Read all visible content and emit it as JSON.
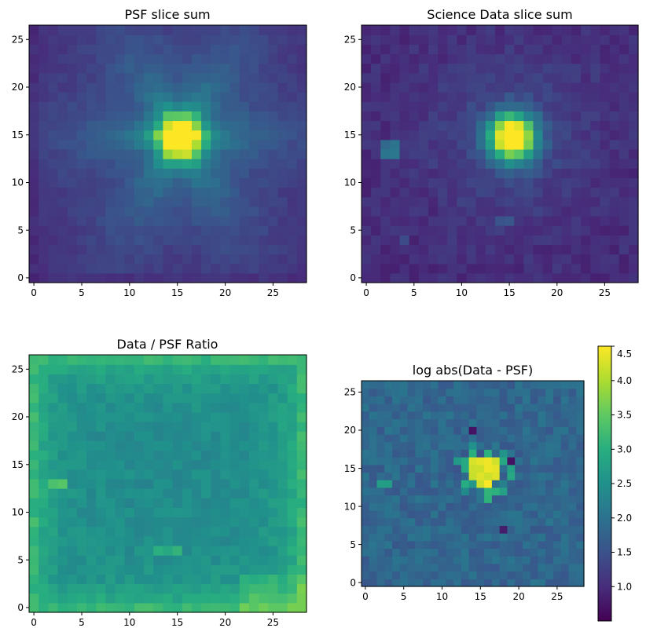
{
  "chart_data": [
    {
      "type": "heatmap",
      "title": "PSF slice sum",
      "colormap": "viridis",
      "grid": false,
      "nx": 29,
      "ny": 27,
      "xlim": [
        -0.5,
        28.5
      ],
      "ylim": [
        -0.5,
        26.5
      ],
      "xticks": [
        0,
        5,
        10,
        15,
        20,
        25
      ],
      "yticks": [
        0,
        5,
        10,
        15,
        20,
        25
      ],
      "xtick_labels": [
        "0",
        "5",
        "10",
        "15",
        "20",
        "25"
      ],
      "ytick_labels": [
        "0",
        "5",
        "10",
        "15",
        "20",
        "25"
      ],
      "peak": {
        "x": 15.3,
        "y": 14.8
      },
      "colorbar": false
    },
    {
      "type": "heatmap",
      "title": "Science Data slice sum",
      "colormap": "viridis",
      "grid": false,
      "nx": 29,
      "ny": 27,
      "xlim": [
        -0.5,
        28.5
      ],
      "ylim": [
        -0.5,
        26.5
      ],
      "xticks": [
        0,
        5,
        10,
        15,
        20,
        25
      ],
      "yticks": [
        0,
        5,
        10,
        15,
        20,
        25
      ],
      "xtick_labels": [
        "0",
        "5",
        "10",
        "15",
        "20",
        "25"
      ],
      "ytick_labels": [
        "0",
        "5",
        "10",
        "15",
        "20",
        "25"
      ],
      "peak": {
        "x": 15,
        "y": 15
      },
      "colorbar": false
    },
    {
      "type": "heatmap",
      "title": "Data / PSF Ratio",
      "colormap": "viridis",
      "grid": false,
      "nx": 29,
      "ny": 27,
      "xlim": [
        -0.5,
        28.5
      ],
      "ylim": [
        -0.5,
        26.5
      ],
      "xticks": [
        0,
        5,
        10,
        15,
        20,
        25
      ],
      "yticks": [
        0,
        5,
        10,
        15,
        20,
        25
      ],
      "xtick_labels": [
        "0",
        "5",
        "10",
        "15",
        "20",
        "25"
      ],
      "ytick_labels": [
        "0",
        "5",
        "10",
        "15",
        "20",
        "25"
      ],
      "colorbar": false
    },
    {
      "type": "heatmap",
      "title": "log abs(Data - PSF)",
      "colormap": "viridis",
      "grid": false,
      "nx": 29,
      "ny": 27,
      "xlim": [
        -0.5,
        28.5
      ],
      "ylim": [
        -0.5,
        26.5
      ],
      "xticks": [
        0,
        5,
        10,
        15,
        20,
        25
      ],
      "yticks": [
        0,
        5,
        10,
        15,
        20,
        25
      ],
      "xtick_labels": [
        "0",
        "5",
        "10",
        "15",
        "20",
        "25"
      ],
      "ytick_labels": [
        "0",
        "5",
        "10",
        "15",
        "20",
        "25"
      ],
      "peak": {
        "x": 15,
        "y": 15
      },
      "colorbar": true,
      "colorbar_range": [
        0.6,
        4.6
      ],
      "colorbar_ticks": [
        1.0,
        1.5,
        2.0,
        2.5,
        3.0,
        3.5,
        4.0,
        4.5
      ],
      "colorbar_tick_labels": [
        "1.0",
        "1.5",
        "2.0",
        "2.5",
        "3.0",
        "3.5",
        "4.0",
        "4.5"
      ]
    }
  ]
}
